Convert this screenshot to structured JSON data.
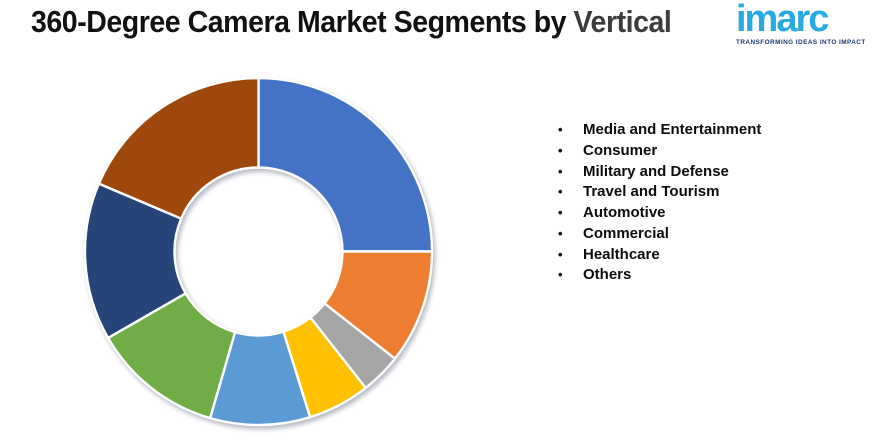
{
  "page": {
    "background": "#FFFFFF"
  },
  "header": {
    "title_main": "360-Degree Camera Market Segments by ",
    "title_accent": "Vertical",
    "title_color": "#111111",
    "accent_color": "#3C3C3C"
  },
  "logo": {
    "wordmark": "imarc",
    "tagline": "TRANSFORMING IDEAS INTO IMPACT",
    "wordmark_color": "#29A9E1",
    "tagline_color": "#1D3A6D"
  },
  "chart_data": {
    "type": "pie",
    "subtype": "donut",
    "title": "360-Degree Camera Market Segments by Vertical",
    "donut_hole_ratio": 0.48,
    "start_angle_deg": 0,
    "direction": "clockwise",
    "legend_position": "right",
    "slice_border_color": "#FFFFFF",
    "center": {
      "x": 258.5,
      "y": 251.5
    },
    "outer_radius": 173.5,
    "inner_radius": 84,
    "series": [
      {
        "name": "Media and Entertainment",
        "value_pct": 25.0,
        "color": "#4472C4"
      },
      {
        "name": "Consumer",
        "value_pct": 10.6,
        "color": "#ED7D31"
      },
      {
        "name": "Military and Defense",
        "value_pct": 3.8,
        "color": "#A5A5A5"
      },
      {
        "name": "Travel and Tourism",
        "value_pct": 5.8,
        "color": "#FFC000"
      },
      {
        "name": "Automotive",
        "value_pct": 9.3,
        "color": "#5B9BD5"
      },
      {
        "name": "Commercial",
        "value_pct": 12.2,
        "color": "#70AD47"
      },
      {
        "name": "Healthcare",
        "value_pct": 14.7,
        "color": "#264478"
      },
      {
        "name": "Others",
        "value_pct": 18.6,
        "color": "#9E480E"
      }
    ]
  }
}
